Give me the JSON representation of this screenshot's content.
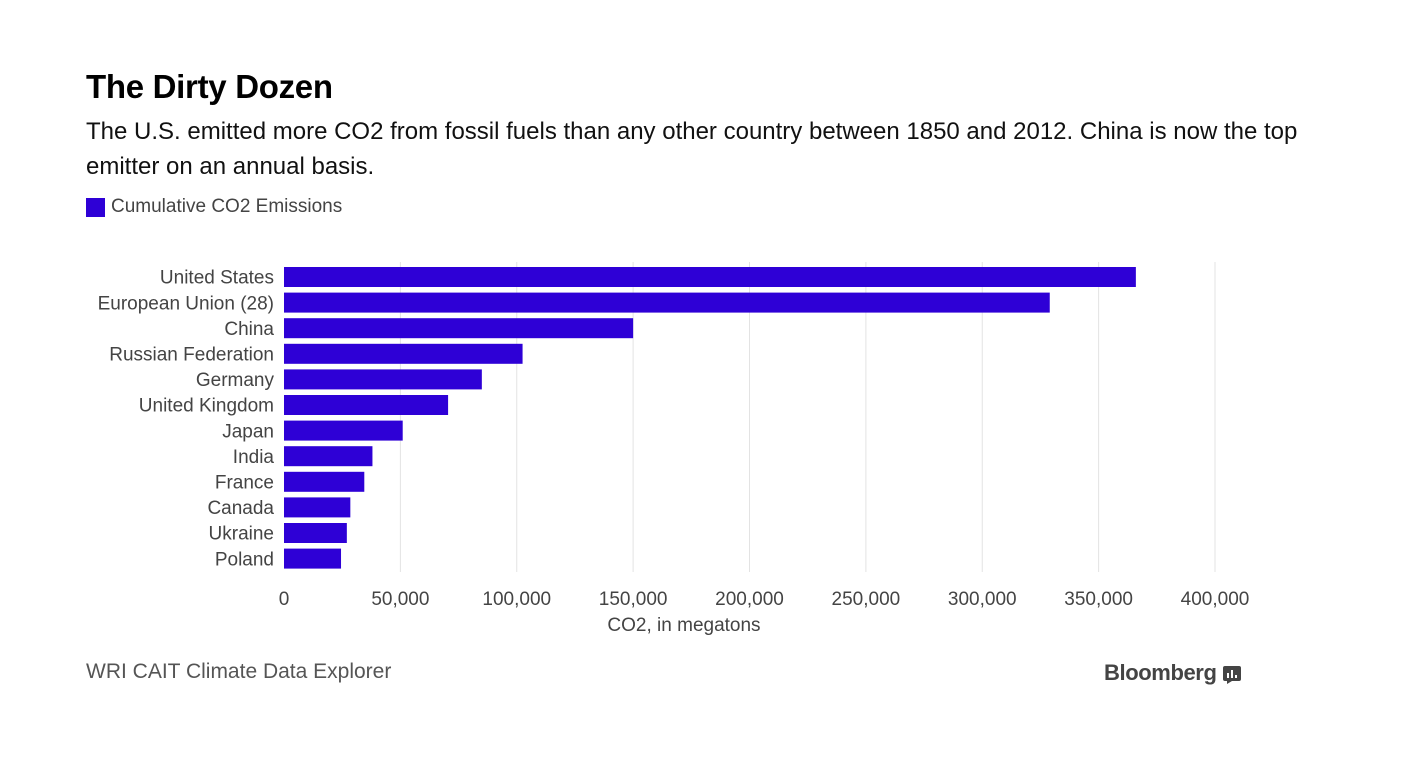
{
  "header": {
    "title": "The Dirty Dozen",
    "subtitle": "The U.S. emitted more CO2 from fossil fuels than any other country between 1850 and 2012. China is now the top emitter on an annual basis."
  },
  "legend": {
    "label": "Cumulative CO2 Emissions"
  },
  "footer": {
    "source": "WRI CAIT Climate Data Explorer",
    "brand": "Bloomberg",
    "brand_icon": "bloomberg-chart-icon"
  },
  "colors": {
    "bar": "#2e00d6",
    "grid": "#e3e3e3",
    "label": "#444444",
    "brand": "#444444"
  },
  "chart_data": {
    "type": "bar",
    "orientation": "horizontal",
    "title": "The Dirty Dozen",
    "xlabel": "CO2, in megatons",
    "ylabel": "",
    "xlim": [
      0,
      400000
    ],
    "xticks": [
      0,
      50000,
      100000,
      150000,
      200000,
      250000,
      300000,
      350000,
      400000
    ],
    "xtick_labels": [
      "0",
      "50,000",
      "100,000",
      "150,000",
      "200,000",
      "250,000",
      "300,000",
      "350,000",
      "400,000"
    ],
    "grid": true,
    "legend_position": "top-left",
    "categories": [
      "United States",
      "European Union (28)",
      "China",
      "Russian Federation",
      "Germany",
      "United Kingdom",
      "Japan",
      "India",
      "France",
      "Canada",
      "Ukraine",
      "Poland"
    ],
    "series": [
      {
        "name": "Cumulative CO2 Emissions",
        "values": [
          366000,
          329000,
          150000,
          102500,
          85000,
          70500,
          51000,
          38000,
          34500,
          28500,
          27000,
          24500
        ]
      }
    ]
  }
}
